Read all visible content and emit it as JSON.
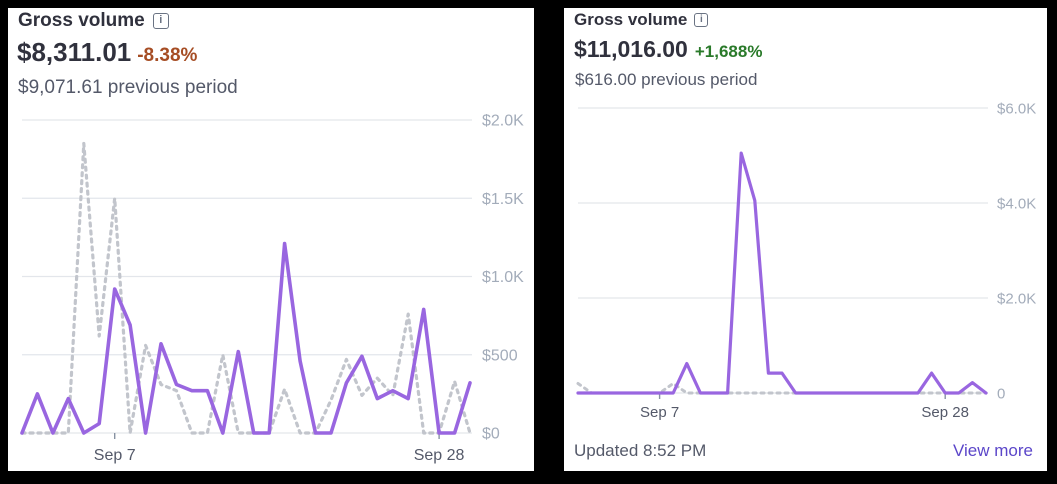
{
  "colors": {
    "current": "#9966e0",
    "previous": "#c2c5cc",
    "grid": "#e3e6eb",
    "negative": "#a64d24",
    "positive": "#2a7a2a"
  },
  "icons": {
    "info": "info-icon"
  },
  "cards": [
    {
      "title": "Gross volume",
      "info_glyph": "i",
      "amount": "$8,311.01",
      "change": "-8.38%",
      "change_direction": "negative",
      "previous": "$9,071.61 previous period"
    },
    {
      "title": "Gross volume",
      "info_glyph": "i",
      "amount": "$11,016.00",
      "change": "+1,688%",
      "change_direction": "positive",
      "previous": "$616.00 previous period",
      "updated": "Updated 8:52 PM",
      "view_more": "View more"
    }
  ],
  "chart_data": [
    {
      "type": "line",
      "ylim": [
        0,
        2000
      ],
      "yticks": [
        0,
        500,
        1000,
        1500,
        2000
      ],
      "ytick_labels": [
        "$0",
        "$500",
        "$1.0K",
        "$1.5K",
        "$2.0K"
      ],
      "xticks": [
        {
          "index": 6,
          "label": "Sep 7"
        },
        {
          "index": 27,
          "label": "Sep 28"
        }
      ],
      "grid": true,
      "series": [
        {
          "role": "current",
          "style": "solid",
          "values": [
            0,
            250,
            0,
            220,
            0,
            60,
            920,
            690,
            0,
            570,
            310,
            270,
            270,
            0,
            520,
            0,
            0,
            1210,
            460,
            0,
            0,
            320,
            490,
            220,
            270,
            220,
            790,
            0,
            0,
            320
          ]
        },
        {
          "role": "previous",
          "style": "dotted",
          "values": [
            0,
            0,
            0,
            0,
            1850,
            620,
            1500,
            0,
            560,
            310,
            270,
            0,
            0,
            500,
            0,
            0,
            0,
            280,
            0,
            0,
            210,
            470,
            240,
            350,
            240,
            760,
            0,
            0,
            330,
            0
          ]
        }
      ]
    },
    {
      "type": "line",
      "ylim": [
        0,
        6000
      ],
      "yticks": [
        0,
        2000,
        4000,
        6000
      ],
      "ytick_labels": [
        "0",
        "$2.0K",
        "$4.0K",
        "$6.0K"
      ],
      "xticks": [
        {
          "index": 6,
          "label": "Sep 7"
        },
        {
          "index": 27,
          "label": "Sep 28"
        }
      ],
      "grid": true,
      "series": [
        {
          "role": "current",
          "style": "solid",
          "values": [
            0,
            0,
            0,
            0,
            0,
            0,
            0,
            0,
            620,
            0,
            0,
            0,
            5050,
            4050,
            420,
            420,
            0,
            0,
            0,
            0,
            0,
            0,
            0,
            0,
            0,
            0,
            420,
            0,
            0,
            220,
            0
          ]
        },
        {
          "role": "previous",
          "style": "dotted",
          "values": [
            200,
            0,
            0,
            0,
            0,
            0,
            0,
            200,
            0,
            0,
            0,
            0,
            0,
            0,
            0,
            0,
            0,
            0,
            0,
            0,
            0,
            0,
            0,
            0,
            0,
            0,
            0,
            0,
            0,
            0,
            0
          ]
        }
      ]
    }
  ]
}
